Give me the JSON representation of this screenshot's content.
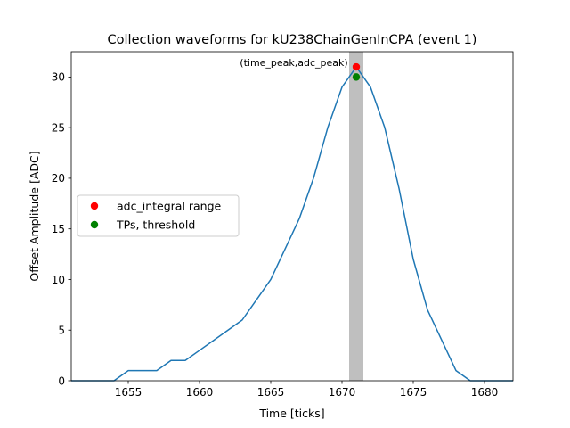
{
  "chart_data": {
    "type": "line",
    "title": "Collection waveforms for kU238ChainGenInCPA (event 1)",
    "xlabel": "Time [ticks]",
    "ylabel": "Offset Amplitude [ADC]",
    "xlim": [
      1651,
      1682
    ],
    "ylim": [
      0,
      32.5
    ],
    "xticks": [
      1655,
      1660,
      1665,
      1670,
      1675,
      1680
    ],
    "yticks": [
      0,
      5,
      10,
      15,
      20,
      25,
      30
    ],
    "grid": false,
    "legend_position": "center-left",
    "series": [
      {
        "name": "",
        "color": "#1f77b4",
        "x": [
          1651,
          1652,
          1653,
          1654,
          1655,
          1656,
          1657,
          1658,
          1659,
          1660,
          1661,
          1662,
          1663,
          1664,
          1665,
          1666,
          1667,
          1668,
          1669,
          1670,
          1671,
          1672,
          1673,
          1674,
          1675,
          1676,
          1677,
          1678,
          1679,
          1680,
          1681,
          1682
        ],
        "y": [
          0,
          0,
          0,
          0,
          1,
          1,
          1,
          2,
          2,
          3,
          4,
          5,
          6,
          8,
          10,
          13,
          16,
          20,
          25,
          29,
          31,
          29,
          25,
          19,
          12,
          7,
          4,
          1,
          0,
          0,
          0,
          0
        ]
      }
    ],
    "shaded_range": {
      "x_start": 1670.5,
      "x_end": 1671.5,
      "color": "#bfbfbf"
    },
    "points": [
      {
        "name": "adc_integral range",
        "x": 1671,
        "y": 31,
        "color": "#ff0000"
      },
      {
        "name": "TPs, threshold",
        "x": 1671,
        "y": 30,
        "color": "#008000"
      }
    ],
    "annotation": {
      "text": "(time_peak,adc_peak)",
      "x": 1671,
      "y": 31
    }
  }
}
